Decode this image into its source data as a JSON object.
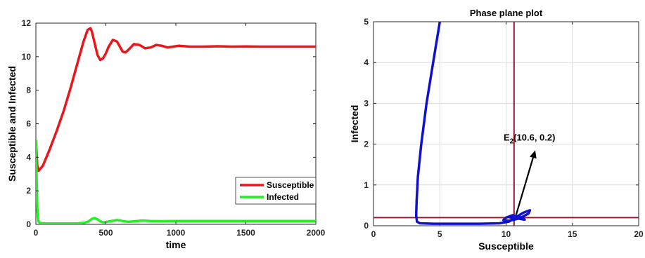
{
  "chart_data": [
    {
      "type": "line",
      "title": "",
      "xlabel": "time",
      "ylabel": "Susceptible and Infected",
      "xlim": [
        0,
        2000
      ],
      "ylim": [
        0,
        12
      ],
      "xticks": [
        "0",
        "500",
        "1000",
        "1500",
        "2000"
      ],
      "yticks": [
        "0",
        "2",
        "4",
        "6",
        "8",
        "10",
        "12"
      ],
      "grid": false,
      "legend_position": "lower-right",
      "series": [
        {
          "name": "Susceptible",
          "color": "#e8171c",
          "x": [
            0,
            10,
            20,
            50,
            100,
            150,
            200,
            250,
            300,
            340,
            370,
            390,
            400,
            420,
            440,
            460,
            480,
            500,
            520,
            550,
            580,
            600,
            620,
            640,
            660,
            700,
            740,
            780,
            820,
            860,
            900,
            940,
            980,
            1020,
            1100,
            1200,
            1300,
            1400,
            1500,
            1600,
            1700,
            1800,
            1900,
            2000
          ],
          "y": [
            5.0,
            3.5,
            3.2,
            3.5,
            4.5,
            5.6,
            6.8,
            8.2,
            9.7,
            10.9,
            11.6,
            11.7,
            11.5,
            10.8,
            10.1,
            9.8,
            9.9,
            10.2,
            10.6,
            11.0,
            10.9,
            10.6,
            10.3,
            10.25,
            10.4,
            10.75,
            10.7,
            10.5,
            10.55,
            10.7,
            10.65,
            10.55,
            10.6,
            10.65,
            10.6,
            10.6,
            10.62,
            10.6,
            10.61,
            10.6,
            10.6,
            10.6,
            10.6,
            10.6
          ]
        },
        {
          "name": "Infected",
          "color": "#22f022",
          "x": [
            0,
            3,
            6,
            10,
            15,
            20,
            30,
            50,
            100,
            200,
            300,
            350,
            380,
            400,
            420,
            440,
            460,
            480,
            500,
            540,
            580,
            620,
            660,
            700,
            760,
            820,
            900,
            1000,
            1200,
            1500,
            1800,
            2000
          ],
          "y": [
            5.0,
            4.0,
            2.5,
            1.0,
            0.4,
            0.15,
            0.08,
            0.06,
            0.05,
            0.05,
            0.06,
            0.1,
            0.2,
            0.32,
            0.38,
            0.3,
            0.18,
            0.12,
            0.14,
            0.2,
            0.26,
            0.2,
            0.15,
            0.18,
            0.23,
            0.2,
            0.19,
            0.2,
            0.2,
            0.2,
            0.2,
            0.2
          ]
        }
      ]
    },
    {
      "type": "line",
      "title": "Phase plane plot",
      "xlabel": "Susceptible",
      "ylabel": "Infected",
      "xlim": [
        0,
        20
      ],
      "ylim": [
        0,
        5
      ],
      "xticks": [
        "0",
        "5",
        "10",
        "15",
        "20"
      ],
      "yticks": [
        "0",
        "1",
        "2",
        "3",
        "4",
        "5"
      ],
      "grid": true,
      "annotation": {
        "text_main": "E",
        "text_sub": "2",
        "text_rest": "(10.6, 0.2)",
        "point": [
          10.6,
          0.2
        ],
        "text_at": [
          12.2,
          1.85
        ]
      },
      "reference_lines": {
        "vertical_x": 10.6,
        "horizontal_y": 0.2,
        "color": "#a2142f"
      },
      "series": [
        {
          "name": "",
          "color": "#1010d0",
          "x": [
            5.0,
            4.5,
            4.0,
            3.6,
            3.35,
            3.25,
            3.22,
            3.28,
            3.5,
            4.5,
            6,
            8,
            9.5,
            10.2,
            10.7,
            11.3,
            11.8,
            11.7,
            11.0,
            10.2,
            9.8,
            10.0,
            10.5,
            11.2,
            11.4,
            11.0,
            10.4,
            10.2,
            10.5,
            10.9,
            11.0,
            10.8,
            10.5,
            10.45,
            10.6
          ],
          "y": [
            5.0,
            4.0,
            3.0,
            2.0,
            1.2,
            0.6,
            0.25,
            0.1,
            0.06,
            0.05,
            0.05,
            0.05,
            0.06,
            0.1,
            0.2,
            0.32,
            0.38,
            0.3,
            0.18,
            0.12,
            0.14,
            0.2,
            0.26,
            0.2,
            0.15,
            0.17,
            0.23,
            0.22,
            0.18,
            0.19,
            0.21,
            0.22,
            0.2,
            0.19,
            0.2
          ]
        }
      ]
    }
  ]
}
